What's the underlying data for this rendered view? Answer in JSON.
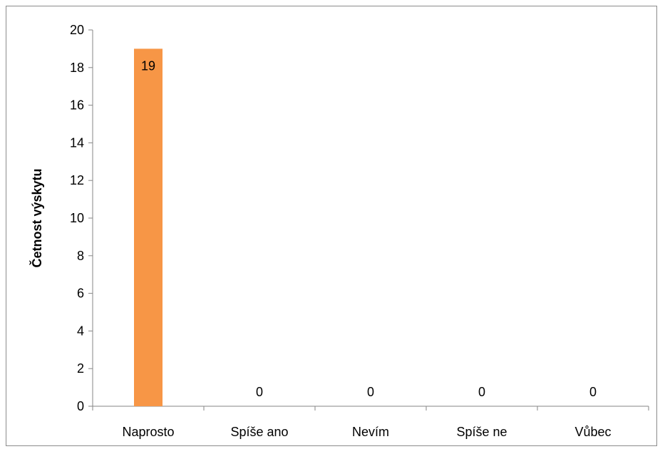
{
  "chart_data": {
    "type": "bar",
    "title": "",
    "xlabel": "",
    "ylabel": "Četnost výskytu",
    "categories": [
      "Naprosto",
      "Spíše ano",
      "Nevím",
      "Spíše ne",
      "Vůbec"
    ],
    "series": [
      {
        "values": [
          19,
          0,
          0,
          0,
          0
        ],
        "color": "#F79646"
      }
    ],
    "data_labels": [
      "19",
      "0",
      "0",
      "0",
      "0"
    ],
    "ylim": [
      0,
      20
    ],
    "yticks": [
      0,
      2,
      4,
      6,
      8,
      10,
      12,
      14,
      16,
      18,
      20
    ],
    "ytick_labels": [
      "0",
      "2",
      "4",
      "6",
      "8",
      "10",
      "12",
      "14",
      "16",
      "18",
      "20"
    ],
    "grid": false,
    "legend": "none"
  }
}
